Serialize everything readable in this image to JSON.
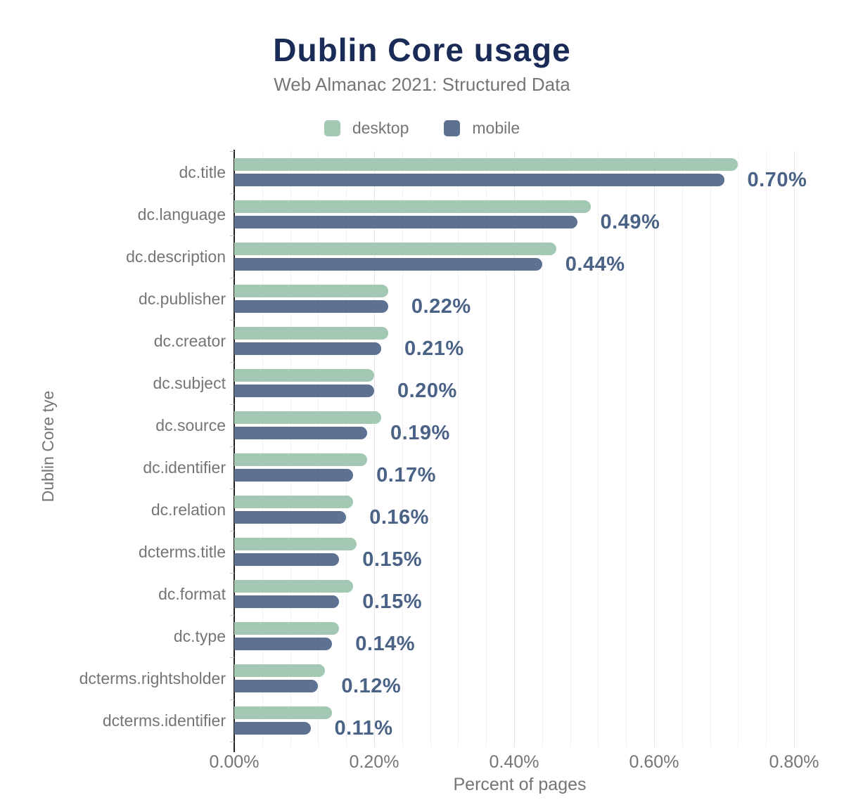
{
  "chart_data": {
    "type": "bar",
    "orientation": "horizontal",
    "title": "Dublin Core usage",
    "subtitle": "Web Almanac 2021: Structured Data",
    "categories": [
      "dc.title",
      "dc.language",
      "dc.description",
      "dc.publisher",
      "dc.creator",
      "dc.subject",
      "dc.source",
      "dc.identifier",
      "dc.relation",
      "dcterms.title",
      "dc.format",
      "dc.type",
      "dcterms.rightsholder",
      "dcterms.identifier"
    ],
    "series": [
      {
        "name": "desktop",
        "color": "#a3c9b4",
        "values": [
          0.72,
          0.51,
          0.46,
          0.22,
          0.22,
          0.2,
          0.21,
          0.19,
          0.17,
          0.175,
          0.17,
          0.15,
          0.13,
          0.14
        ]
      },
      {
        "name": "mobile",
        "color": "#5d7190",
        "values": [
          0.7,
          0.49,
          0.44,
          0.22,
          0.21,
          0.2,
          0.19,
          0.17,
          0.16,
          0.15,
          0.15,
          0.14,
          0.12,
          0.11
        ]
      }
    ],
    "data_labels": [
      "0.70%",
      "0.49%",
      "0.44%",
      "0.22%",
      "0.21%",
      "0.20%",
      "0.19%",
      "0.17%",
      "0.16%",
      "0.15%",
      "0.15%",
      "0.14%",
      "0.12%",
      "0.11%"
    ],
    "data_labels_series": "mobile",
    "xlabel": "Percent of pages",
    "ylabel": "Dublin Core tye",
    "x_tick_labels": [
      "0.00%",
      "0.20%",
      "0.40%",
      "0.60%",
      "0.80%"
    ],
    "x_tick_values": [
      0,
      0.2,
      0.4,
      0.6,
      0.8
    ],
    "xlim": [
      0,
      0.81
    ],
    "grid": {
      "vertical_minor_step_pct": 0.04,
      "vertical_major_step_pct": 0.2
    },
    "legend_position": "top"
  },
  "colors": {
    "background": "#ffffff",
    "title_text": "#192b56",
    "subtitle_text": "#757575",
    "axis_text": "#757575",
    "category_text": "#757575",
    "value_label_text": "#4a6286",
    "desktop_bar": "#a3c9b4",
    "mobile_bar": "#5d7190",
    "axis_line": "#212121",
    "grid_minor": "#f3f1ef",
    "grid_major": "#e8e6e4"
  }
}
